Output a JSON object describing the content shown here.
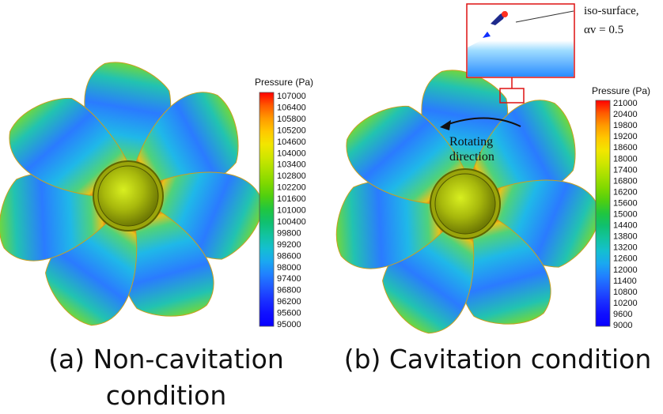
{
  "panels": [
    {
      "id": "a",
      "caption_line1": "(a) Non-cavitation",
      "caption_line2": "condition",
      "legend": {
        "title": "Pressure (Pa)",
        "ticks": [
          "107000",
          "106400",
          "105800",
          "105200",
          "104600",
          "104000",
          "103400",
          "102800",
          "102200",
          "101600",
          "101000",
          "100400",
          "99800",
          "99200",
          "98600",
          "98000",
          "97400",
          "96800",
          "96200",
          "95600",
          "95000"
        ]
      }
    },
    {
      "id": "b",
      "caption_line1": "(b) Cavitation condition",
      "legend": {
        "title": "Pressure (Pa)",
        "ticks": [
          "21000",
          "20400",
          "19800",
          "19200",
          "18600",
          "18000",
          "17400",
          "16800",
          "16200",
          "15600",
          "15000",
          "14400",
          "13800",
          "13200",
          "12600",
          "12000",
          "11400",
          "10800",
          "10200",
          "9600",
          "9000"
        ]
      },
      "annotations": {
        "rotation_line1": "Rotating",
        "rotation_line2": "direction",
        "iso_line1": "iso-surface,",
        "iso_line2": "αv = 0.5"
      }
    }
  ],
  "colormap": [
    "#ff0000",
    "#ff5a00",
    "#ff9a00",
    "#ffc800",
    "#f2e600",
    "#cfe600",
    "#a8e000",
    "#7fd800",
    "#4fcf10",
    "#20c640",
    "#10c070",
    "#12c3a0",
    "#14bfd0",
    "#1aa8f0",
    "#2080ff",
    "#2058ff",
    "#1a30ff",
    "#1010ff",
    "#0800ff"
  ]
}
